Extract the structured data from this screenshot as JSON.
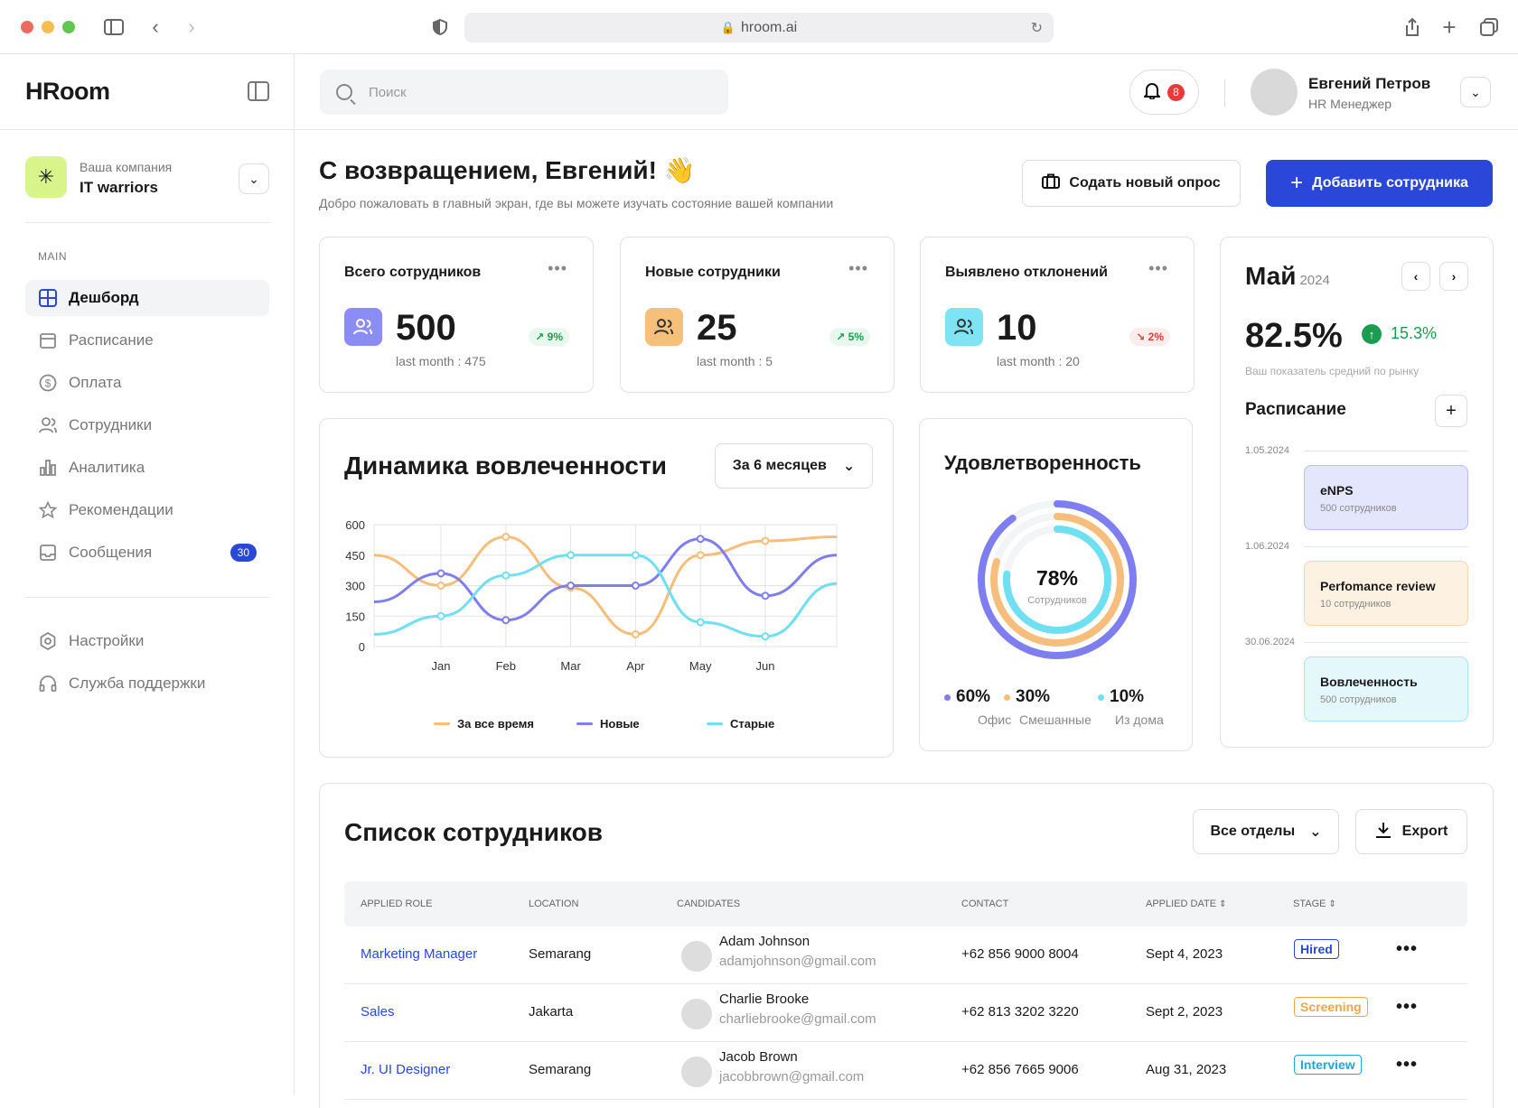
{
  "browser": {
    "url": "hroom.ai"
  },
  "app": {
    "logo": "HRoom"
  },
  "company": {
    "label": "Ваша компания",
    "name": "IT warriors"
  },
  "sidebar": {
    "section": "MAIN",
    "items": [
      {
        "label": "Дешборд",
        "icon": "dashboard-icon"
      },
      {
        "label": "Расписание",
        "icon": "calendar-icon"
      },
      {
        "label": "Оплата",
        "icon": "dollar-icon"
      },
      {
        "label": "Сотрудники",
        "icon": "users-icon"
      },
      {
        "label": "Аналитика",
        "icon": "chart-icon"
      },
      {
        "label": "Рекомендации",
        "icon": "star-icon"
      },
      {
        "label": "Сообщения",
        "icon": "inbox-icon",
        "badge": "30"
      }
    ],
    "bottom": [
      {
        "label": "Настройки",
        "icon": "settings-icon"
      },
      {
        "label": "Служба поддержки",
        "icon": "headset-icon"
      }
    ]
  },
  "topbar": {
    "search_placeholder": "Поиск",
    "notif_count": "8",
    "user_name": "Евгений Петров",
    "user_role": "HR Менеджер"
  },
  "header": {
    "title": "С возвращением, Евгений! 👋",
    "subtitle": "Добро пожаловать в главный экран, где вы можете изучать состояние вашей компании",
    "btn_survey": "Содать новый опрос",
    "btn_add": "Добавить сотрудника"
  },
  "stats": [
    {
      "title": "Всего сотрудников",
      "value": "500",
      "last": "last month : 475",
      "change": "9%",
      "dir": "up",
      "color": "#8b8cf5"
    },
    {
      "title": "Новые сотрудники",
      "value": "25",
      "last": "last month : 5",
      "change": "5%",
      "dir": "up",
      "color": "#f7c07a"
    },
    {
      "title": "Выявлено отклонений",
      "value": "10",
      "last": "last month : 20",
      "change": "2%",
      "dir": "down",
      "color": "#7ee3f2"
    }
  ],
  "calendar": {
    "month": "Май",
    "year": "2024",
    "value": "82.5%",
    "change": "15.3%",
    "note": "Ваш показатель средний по рынку",
    "schedule_title": "Расписание",
    "events": [
      {
        "date": "1.05.2024",
        "title": "eNPS",
        "sub": "500 сотрудников",
        "bg": "#e4e6fd",
        "bd": "#b8bdf5"
      },
      {
        "date": "1.06.2024",
        "title": "Perfomance review",
        "sub": "10 сотрудников",
        "bg": "#fdf1e2",
        "bd": "#f5d6ad"
      },
      {
        "date": "30.06.2024",
        "title": "Вовлеченность",
        "sub": "500 сотрудников",
        "bg": "#e4f8fc",
        "bd": "#a9e6f1"
      }
    ]
  },
  "engagement": {
    "title": "Динамика вовлеченности",
    "period": "За 6 месяцев"
  },
  "chart_data": {
    "type": "line",
    "title": "Динамика вовлеченности",
    "categories": [
      "Jan",
      "Feb",
      "Mar",
      "Apr",
      "May",
      "Jun"
    ],
    "ylim": [
      0,
      600
    ],
    "yticks": [
      "600",
      "450",
      "300",
      "150",
      "0"
    ],
    "series": [
      {
        "name": "За все время",
        "color": "#f6be7a",
        "values": [
          300,
          540,
          290,
          60,
          450,
          520
        ],
        "start": 450,
        "end": 540
      },
      {
        "name": "Новые",
        "color": "#7f7ef0",
        "values": [
          360,
          130,
          300,
          300,
          530,
          250
        ],
        "start": 220,
        "end": 450
      },
      {
        "name": "Старые",
        "color": "#6fe0f2",
        "values": [
          150,
          350,
          450,
          450,
          120,
          50
        ],
        "start": 60,
        "end": 310
      }
    ]
  },
  "satisfaction": {
    "title": "Удовлетворенность",
    "center_value": "78%",
    "center_label": "Сотрудников",
    "parts": [
      {
        "value": "60%",
        "label": "Офис",
        "color": "#7f7ef0"
      },
      {
        "value": "30%",
        "label": "Смешанные",
        "color": "#f6be7a"
      },
      {
        "value": "10%",
        "label": "Из дома",
        "color": "#6fe0f2"
      }
    ]
  },
  "employees": {
    "title": "Список сотрудников",
    "dept": "Все отделы",
    "export": "Export",
    "columns": [
      "APPLIED ROLE",
      "LOCATION",
      "CANDIDATES",
      "CONTACT",
      "APPLIED DATE",
      "STAGE"
    ],
    "rows": [
      {
        "role": "Marketing Manager",
        "location": "Semarang",
        "name": "Adam Johnson",
        "email": "adamjohnson@gmail.com",
        "phone": "+62 856 9000 8004",
        "date": "Sept 4, 2023",
        "stage": "Hired",
        "stage_color": "#2a47d9"
      },
      {
        "role": "Sales",
        "location": "Jakarta",
        "name": "Charlie Brooke",
        "email": "charliebrooke@gmail.com",
        "phone": "+62 813 3202 3220",
        "date": "Sept 2, 2023",
        "stage": "Screening",
        "stage_color": "#f0a54a"
      },
      {
        "role": "Jr. UI Designer",
        "location": "Semarang",
        "name": "Jacob Brown",
        "email": "jacobbrown@gmail.com",
        "phone": "+62 856 7665 9006",
        "date": "Aug 31, 2023",
        "stage": "Interview",
        "stage_color": "#1ea7d6"
      }
    ]
  }
}
